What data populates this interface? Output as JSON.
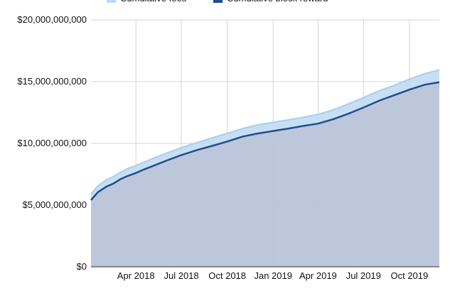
{
  "chart_data": {
    "type": "area",
    "title": "",
    "xlabel": "",
    "ylabel": "",
    "x": [
      "2018-01-01",
      "2018-01-15",
      "2018-02-01",
      "2018-02-15",
      "2018-03-01",
      "2018-03-15",
      "2018-04-01",
      "2018-04-15",
      "2018-05-01",
      "2018-06-01",
      "2018-07-01",
      "2018-08-01",
      "2018-09-01",
      "2018-10-01",
      "2018-11-01",
      "2018-12-01",
      "2019-01-01",
      "2019-02-01",
      "2019-03-01",
      "2019-04-01",
      "2019-05-01",
      "2019-06-01",
      "2019-07-01",
      "2019-08-01",
      "2019-09-01",
      "2019-10-01",
      "2019-11-01",
      "2019-11-30"
    ],
    "series": [
      {
        "name": "Cumulative fees",
        "color": "#bcd9f3",
        "values": [
          5900000000,
          6550000000,
          7050000000,
          7300000000,
          7650000000,
          7950000000,
          8200000000,
          8450000000,
          8700000000,
          9200000000,
          9650000000,
          10050000000,
          10450000000,
          10800000000,
          11200000000,
          11500000000,
          11700000000,
          11900000000,
          12100000000,
          12350000000,
          12700000000,
          13200000000,
          13700000000,
          14250000000,
          14700000000,
          15200000000,
          15650000000,
          15950000000
        ]
      },
      {
        "name": "Cumulative block reward",
        "color": "#1f4e8c",
        "values": [
          5400000000,
          6050000000,
          6500000000,
          6750000000,
          7100000000,
          7350000000,
          7600000000,
          7850000000,
          8100000000,
          8600000000,
          9050000000,
          9450000000,
          9800000000,
          10150000000,
          10550000000,
          10800000000,
          11000000000,
          11200000000,
          11400000000,
          11600000000,
          11950000000,
          12400000000,
          12900000000,
          13450000000,
          13900000000,
          14350000000,
          14750000000,
          14950000000
        ]
      }
    ],
    "x_tick_labels": [
      "Apr 2018",
      "Jul 2018",
      "Oct 2018",
      "Jan 2019",
      "Apr 2019",
      "Jul 2019",
      "Oct 2019"
    ],
    "x_tick_dates": [
      "2018-04-01",
      "2018-07-01",
      "2018-10-01",
      "2019-01-01",
      "2019-04-01",
      "2019-07-01",
      "2019-10-01"
    ],
    "y_tick_labels": [
      "$0",
      "$5,000,000,000",
      "$10,000,000,000",
      "$15,000,000,000",
      "$20,000,000,000"
    ],
    "y_tick_values": [
      0,
      5000000000,
      10000000000,
      15000000000,
      20000000000
    ],
    "xlim": [
      "2018-01-01",
      "2019-11-30"
    ],
    "ylim": [
      0,
      20000000000
    ],
    "grid": true,
    "legend_position": "top-left",
    "colors": {
      "fees_fill": "#bcd9f3",
      "fees_line": "#a9cdee",
      "reward_fill": "#b9c4d9",
      "reward_line": "#1f4e8c",
      "grid": "#d4d4d4"
    }
  }
}
